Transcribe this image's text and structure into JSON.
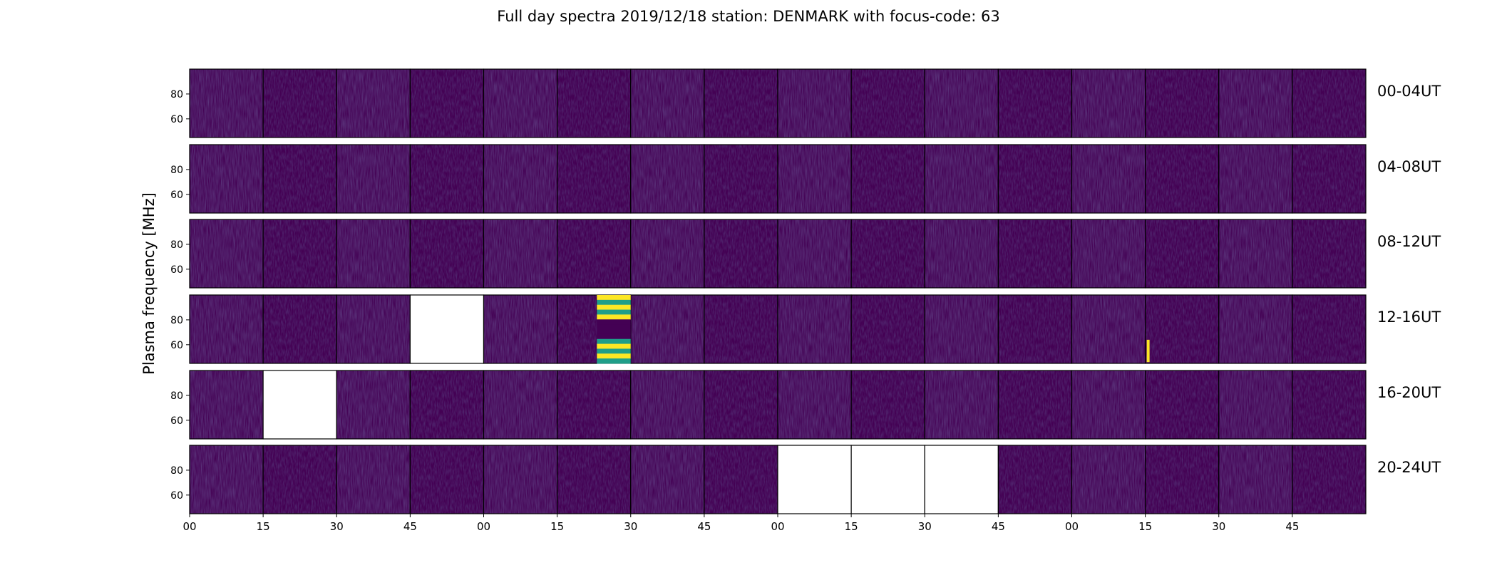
{
  "chart_data": {
    "type": "heatmap",
    "title": "Full day spectra 2019/12/18 station: DENMARK with focus-code: 63",
    "ylabel": "Plasma frequency [MHz]",
    "yticks": [
      "60",
      "80"
    ],
    "ylim": [
      45,
      100
    ],
    "xticks": [
      "00",
      "15",
      "30",
      "45",
      "00",
      "15",
      "30",
      "45",
      "00",
      "15",
      "30",
      "45",
      "00",
      "15",
      "30",
      "45"
    ],
    "row_labels": [
      "00-04UT",
      "04-08UT",
      "08-12UT",
      "12-16UT",
      "16-20UT",
      "20-24UT"
    ],
    "panels_per_row": 16,
    "panel_minutes": 15,
    "colormap": "viridis",
    "background_color": "#440154",
    "missing_color": "#ffffff",
    "missing_panels": [
      {
        "row": 3,
        "index": 3
      },
      {
        "row": 4,
        "index": 1
      },
      {
        "row": 5,
        "index": 8
      },
      {
        "row": 5,
        "index": 9
      },
      {
        "row": 5,
        "index": 10
      }
    ],
    "bright_events": [
      {
        "row": 3,
        "index": 5,
        "freq_start": 45,
        "freq_end": 100,
        "description": "broadband bright bands"
      },
      {
        "row": 3,
        "index": 13,
        "freq_start": 46,
        "freq_end": 64
      }
    ]
  }
}
